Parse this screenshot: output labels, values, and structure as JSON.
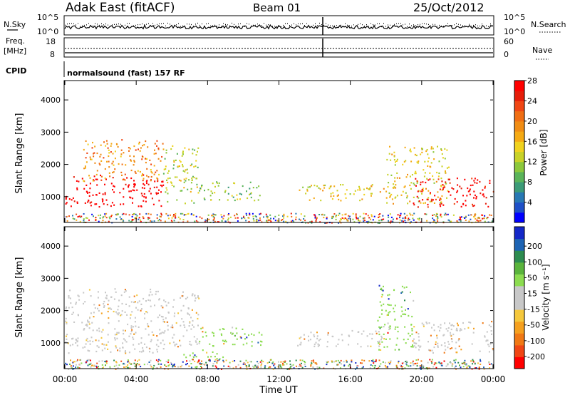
{
  "header": {
    "station": "Adak East (fitACF)",
    "beam": "Beam 01",
    "date": "25/Oct/2012"
  },
  "status_panels": {
    "nsky_label": "N.Sky",
    "nsky_ticks": [
      "10^5",
      "10^0"
    ],
    "nsearch_label": "N.Search",
    "nsearch_ticks": [
      "10^5",
      "10^0"
    ],
    "freq_label_line1": "Freq.",
    "freq_label_line2": "[MHz]",
    "freq_ticks": [
      "18",
      "8"
    ],
    "nave_label": "Nave",
    "nave_ticks": [
      "60",
      "0"
    ],
    "cpid_label": "CPID",
    "cpid_text": "normalsound (fast) 157 RF"
  },
  "chart_data": [
    {
      "type": "heatmap",
      "name": "power",
      "ylabel": "Slant Range [km]",
      "xlabel": "",
      "yticks": [
        "1000",
        "2000",
        "3000",
        "4000"
      ],
      "ylim": [
        200,
        4600
      ],
      "xlim_hours": [
        0,
        24
      ],
      "colorbar": {
        "label": "Power [dB]",
        "ticks": [
          "4",
          "8",
          "12",
          "16",
          "20",
          "24",
          "28"
        ],
        "colors": [
          "#0000ff",
          "#1e50c8",
          "#2878b4",
          "#3c9b78",
          "#5ab45a",
          "#8cc83c",
          "#c8d228",
          "#f0d21e",
          "#f5aa14",
          "#f08c14",
          "#f06e14",
          "#f04614",
          "#e61e0a",
          "#ff0000"
        ]
      },
      "regions": [
        {
          "t0": 0.0,
          "t1": 5.5,
          "r0": 700,
          "r1": 1700,
          "level": 28
        },
        {
          "t0": 1.0,
          "t1": 5.5,
          "r0": 1500,
          "r1": 2800,
          "level": 18
        },
        {
          "t0": 5.5,
          "t1": 7.5,
          "r0": 800,
          "r1": 2600,
          "level": 12
        },
        {
          "t0": 7.5,
          "t1": 11.0,
          "r0": 900,
          "r1": 1500,
          "level": 10
        },
        {
          "t0": 13.0,
          "t1": 18.0,
          "r0": 900,
          "r1": 1400,
          "level": 14
        },
        {
          "t0": 18.0,
          "t1": 21.5,
          "r0": 800,
          "r1": 2600,
          "level": 14
        },
        {
          "t0": 19.5,
          "t1": 24.0,
          "r0": 700,
          "r1": 1600,
          "level": 26
        }
      ]
    },
    {
      "type": "heatmap",
      "name": "velocity",
      "ylabel": "Slant Range [km]",
      "xlabel": "Time UT",
      "yticks": [
        "1000",
        "2000",
        "3000",
        "4000"
      ],
      "xticks": [
        "00:00",
        "04:00",
        "08:00",
        "12:00",
        "16:00",
        "20:00",
        "00:00"
      ],
      "ylim": [
        200,
        4600
      ],
      "xlim_hours": [
        0,
        24
      ],
      "colorbar": {
        "label": "Velocity [m s⁻¹]",
        "ticks": [
          "200",
          "100",
          "50",
          "15",
          "-15",
          "-50",
          "-100",
          "-200"
        ],
        "colors": [
          "#1428c8",
          "#1e64b4",
          "#2d8c50",
          "#5ab43c",
          "#8cdc50",
          "#c8c8c8",
          "#c8c8c8",
          "#f5c83c",
          "#f5a01e",
          "#f07814",
          "#f04614",
          "#ff0000"
        ]
      },
      "regions": [
        {
          "t0": 0.0,
          "t1": 5.5,
          "r0": 700,
          "r1": 2700,
          "level": 0
        },
        {
          "t0": 5.5,
          "t1": 7.5,
          "r0": 900,
          "r1": 2600,
          "level": 0
        },
        {
          "t0": 7.5,
          "t1": 11.0,
          "r0": 900,
          "r1": 1500,
          "level": 40
        },
        {
          "t0": 6.5,
          "t1": 9.0,
          "r0": 500,
          "r1": 800,
          "level": 40
        },
        {
          "t0": 13.0,
          "t1": 18.0,
          "r0": 900,
          "r1": 1400,
          "level": 0
        },
        {
          "t0": 17.5,
          "t1": 19.5,
          "r0": 800,
          "r1": 2800,
          "level": 40
        },
        {
          "t0": 19.5,
          "t1": 24.0,
          "r0": 700,
          "r1": 1700,
          "level": 0
        }
      ]
    }
  ]
}
